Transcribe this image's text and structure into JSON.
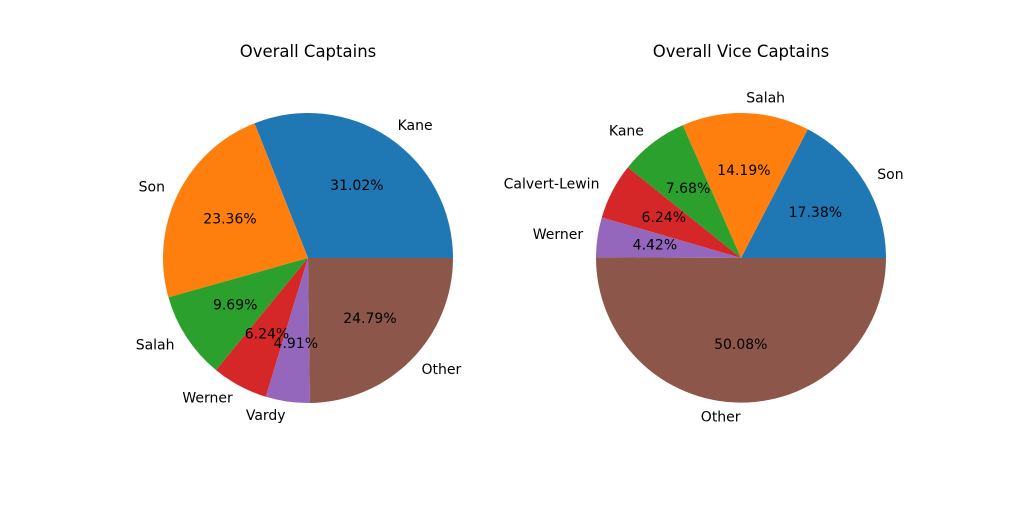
{
  "chart_data": [
    {
      "type": "pie",
      "title": "Overall Captains",
      "start_angle_deg": 0,
      "direction": "counterclockwise",
      "slices": [
        {
          "label": "Kane",
          "value": 31.02,
          "pct_text": "31.02%",
          "color": "#1f77b4"
        },
        {
          "label": "Son",
          "value": 23.36,
          "pct_text": "23.36%",
          "color": "#ff7f0e"
        },
        {
          "label": "Salah",
          "value": 9.69,
          "pct_text": "9.69%",
          "color": "#2ca02c"
        },
        {
          "label": "Werner",
          "value": 6.24,
          "pct_text": "6.24%",
          "color": "#d62728"
        },
        {
          "label": "Vardy",
          "value": 4.91,
          "pct_text": "4.91%",
          "color": "#9467bd"
        },
        {
          "label": "Other",
          "value": 24.79,
          "pct_text": "24.79%",
          "color": "#8c564b"
        }
      ]
    },
    {
      "type": "pie",
      "title": "Overall Vice Captains",
      "start_angle_deg": 0,
      "direction": "counterclockwise",
      "slices": [
        {
          "label": "Son",
          "value": 17.38,
          "pct_text": "17.38%",
          "color": "#1f77b4"
        },
        {
          "label": "Salah",
          "value": 14.19,
          "pct_text": "14.19%",
          "color": "#ff7f0e"
        },
        {
          "label": "Kane",
          "value": 7.68,
          "pct_text": "7.68%",
          "color": "#2ca02c"
        },
        {
          "label": "Calvert-Lewin",
          "value": 6.24,
          "pct_text": "6.24%",
          "color": "#d62728"
        },
        {
          "label": "Werner",
          "value": 4.42,
          "pct_text": "4.42%",
          "color": "#9467bd"
        },
        {
          "label": "Other",
          "value": 50.08,
          "pct_text": "50.08%",
          "color": "#8c564b"
        }
      ]
    }
  ]
}
